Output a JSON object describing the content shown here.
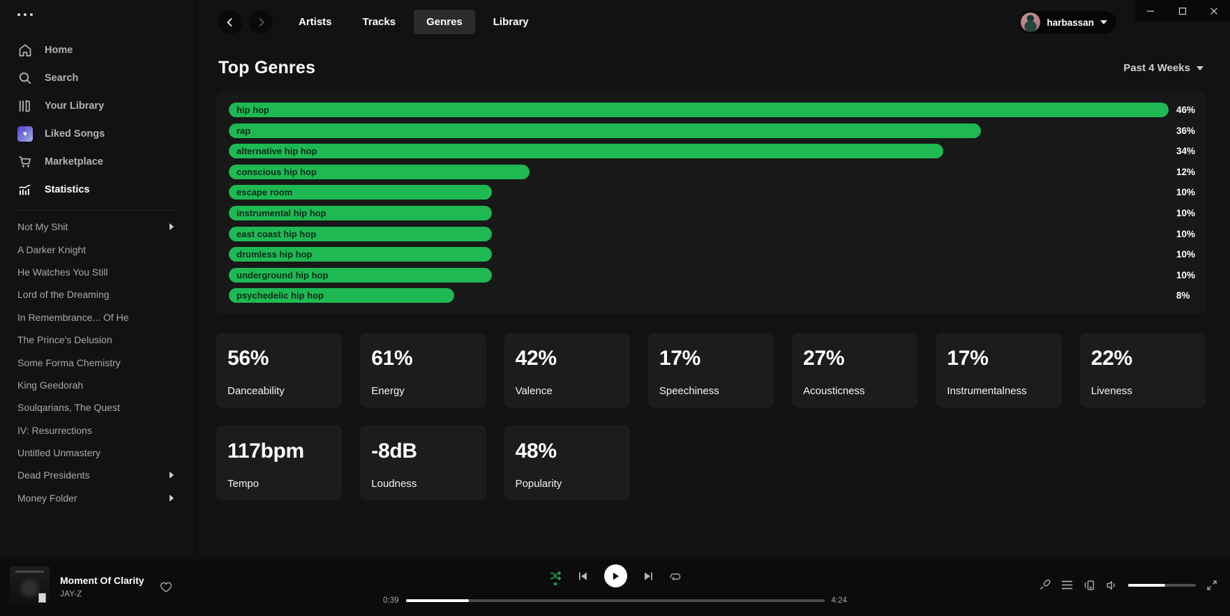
{
  "window": {
    "controls": {
      "minimize": "minimize",
      "maximize": "maximize",
      "close": "close"
    }
  },
  "sidebar": {
    "nav": [
      {
        "label": "Home",
        "icon": "home-icon",
        "active": false
      },
      {
        "label": "Search",
        "icon": "search-icon",
        "active": false
      },
      {
        "label": "Your Library",
        "icon": "library-icon",
        "active": false
      },
      {
        "label": "Liked Songs",
        "icon": "liked-heart-icon",
        "active": false
      },
      {
        "label": "Marketplace",
        "icon": "cart-icon",
        "active": false
      },
      {
        "label": "Statistics",
        "icon": "stats-icon",
        "active": true
      }
    ],
    "playlists": [
      {
        "label": "Not My Shit",
        "has_arrow": true
      },
      {
        "label": "A Darker Knight",
        "has_arrow": false
      },
      {
        "label": "He Watches You Still",
        "has_arrow": false
      },
      {
        "label": "Lord of the Dreaming",
        "has_arrow": false
      },
      {
        "label": "In Remembrance... Of He",
        "has_arrow": false
      },
      {
        "label": "The Prince's Delusion",
        "has_arrow": false
      },
      {
        "label": "Some Forma Chemistry",
        "has_arrow": false
      },
      {
        "label": "King Geedorah",
        "has_arrow": false
      },
      {
        "label": "Soulqarians, The Quest",
        "has_arrow": false
      },
      {
        "label": "IV: Resurrections",
        "has_arrow": false
      },
      {
        "label": "Untitled Unmastery",
        "has_arrow": false
      },
      {
        "label": "Dead Presidents",
        "has_arrow": true
      },
      {
        "label": "Money Folder",
        "has_arrow": true
      }
    ]
  },
  "topbar": {
    "tabs": [
      {
        "label": "Artists",
        "active": false
      },
      {
        "label": "Tracks",
        "active": false
      },
      {
        "label": "Genres",
        "active": true
      },
      {
        "label": "Library",
        "active": false
      }
    ],
    "user": {
      "name": "harbassan"
    }
  },
  "page": {
    "title": "Top Genres",
    "range_label": "Past 4 Weeks"
  },
  "chart_data": {
    "type": "bar",
    "orientation": "horizontal",
    "title": "Top Genres",
    "time_range": "Past 4 Weeks",
    "categories": [
      "hip hop",
      "rap",
      "alternative hip hop",
      "conscious hip hop",
      "escape room",
      "instrumental hip hop",
      "east coast hip hop",
      "drumless hip hop",
      "underground hip hop",
      "psychedelic hip hop"
    ],
    "values": [
      46,
      36,
      34,
      12,
      10,
      10,
      10,
      10,
      10,
      8
    ],
    "unit": "%",
    "xlim": [
      0,
      46
    ],
    "bar_color": "#1fb954",
    "grid": false,
    "legend": false
  },
  "stats": [
    {
      "value": "56%",
      "label": "Danceability"
    },
    {
      "value": "61%",
      "label": "Energy"
    },
    {
      "value": "42%",
      "label": "Valence"
    },
    {
      "value": "17%",
      "label": "Speechiness"
    },
    {
      "value": "27%",
      "label": "Acousticness"
    },
    {
      "value": "17%",
      "label": "Instrumentalness"
    },
    {
      "value": "22%",
      "label": "Liveness"
    },
    {
      "value": "117bpm",
      "label": "Tempo"
    },
    {
      "value": "-8dB",
      "label": "Loudness"
    },
    {
      "value": "48%",
      "label": "Popularity"
    }
  ],
  "player": {
    "track": "Moment Of Clarity",
    "artist": "JAY-Z",
    "elapsed": "0:39",
    "duration": "4:24",
    "progress_pct": 15,
    "volume_pct": 55,
    "shuffle_on": true
  },
  "colors": {
    "accent_green": "#1fb954",
    "background": "#121212",
    "panel": "#181818",
    "card": "#1c1c1c"
  }
}
